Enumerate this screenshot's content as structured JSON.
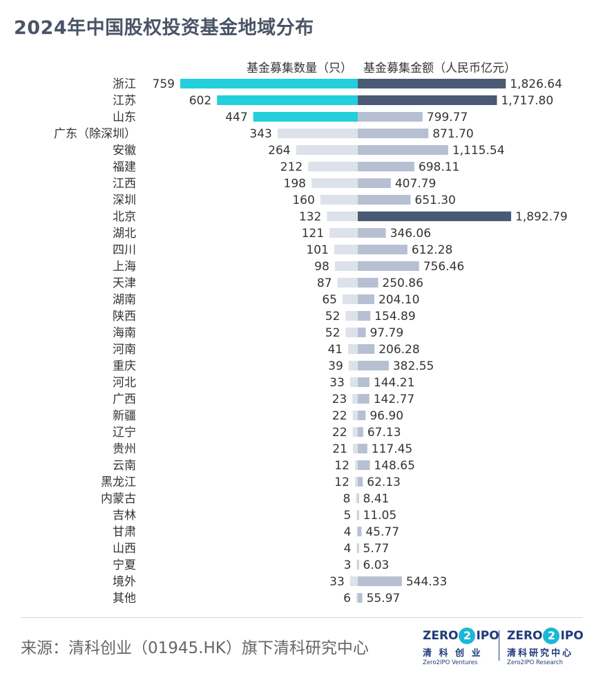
{
  "title": "2024年中国股权投资基金地域分布",
  "source": "来源：清科创业（01945.HK）旗下清科研究中心",
  "logos": [
    {
      "mark_left": "ZERO",
      "mark_mid": "2",
      "mark_right": "IPO",
      "cn": "清 科 创 业",
      "en": "Zero2IPO Ventures"
    },
    {
      "mark_left": "ZERO",
      "mark_mid": "2",
      "mark_right": "IPO",
      "cn": "清科研究中心",
      "en": "Zero2IPO Research"
    }
  ],
  "colors": {
    "left_highlight": "#22cfdb",
    "left_normal": "#dde1ea",
    "right_dark": "#4a5a74",
    "right_normal": "#b6c0d2",
    "label_text": "#333333"
  },
  "chart_data": {
    "type": "bar",
    "orientation": "horizontal-butterfly",
    "categories": [
      "浙江",
      "江苏",
      "山东",
      "广东（除深圳）",
      "安徽",
      "福建",
      "江西",
      "深圳",
      "北京",
      "湖北",
      "四川",
      "上海",
      "天津",
      "湖南",
      "陕西",
      "海南",
      "河南",
      "重庆",
      "河北",
      "广西",
      "新疆",
      "辽宁",
      "贵州",
      "云南",
      "黑龙江",
      "内蒙古",
      "吉林",
      "甘肃",
      "山西",
      "宁夏",
      "境外",
      "其他"
    ],
    "series": [
      {
        "name": "基金募集数量（只）",
        "side": "left",
        "values": [
          759,
          602,
          447,
          343,
          264,
          212,
          198,
          160,
          132,
          121,
          101,
          98,
          87,
          65,
          52,
          52,
          41,
          39,
          33,
          23,
          22,
          22,
          21,
          12,
          12,
          8,
          5,
          4,
          4,
          3,
          33,
          6
        ],
        "labels": [
          "759",
          "602",
          "447",
          "343",
          "264",
          "212",
          "198",
          "160",
          "132",
          "121",
          "101",
          "98",
          "87",
          "65",
          "52",
          "52",
          "41",
          "39",
          "33",
          "23",
          "22",
          "22",
          "21",
          "12",
          "12",
          "8",
          "5",
          "4",
          "4",
          "3",
          "33",
          "6"
        ],
        "highlight_top": 3
      },
      {
        "name": "基金募集金额（人民币亿元）",
        "side": "right",
        "values": [
          1826.64,
          1717.8,
          799.77,
          871.7,
          1115.54,
          698.11,
          407.79,
          651.3,
          1892.79,
          346.06,
          612.28,
          756.46,
          250.86,
          204.1,
          154.89,
          97.79,
          206.28,
          382.55,
          144.21,
          142.77,
          96.9,
          67.13,
          117.45,
          148.65,
          62.13,
          8.41,
          11.05,
          45.77,
          5.77,
          6.03,
          544.33,
          55.97
        ],
        "labels": [
          "1,826.64",
          "1,717.80",
          "799.77",
          "871.70",
          "1,115.54",
          "698.11",
          "407.79",
          "651.30",
          "1,892.79",
          "346.06",
          "612.28",
          "756.46",
          "250.86",
          "204.10",
          "154.89",
          "97.79",
          "206.28",
          "382.55",
          "144.21",
          "142.77",
          "96.90",
          "67.13",
          "117.45",
          "148.65",
          "62.13",
          "8.41",
          "11.05",
          "45.77",
          "5.77",
          "6.03",
          "544.33",
          "55.97"
        ],
        "highlight_top": 3
      }
    ]
  }
}
